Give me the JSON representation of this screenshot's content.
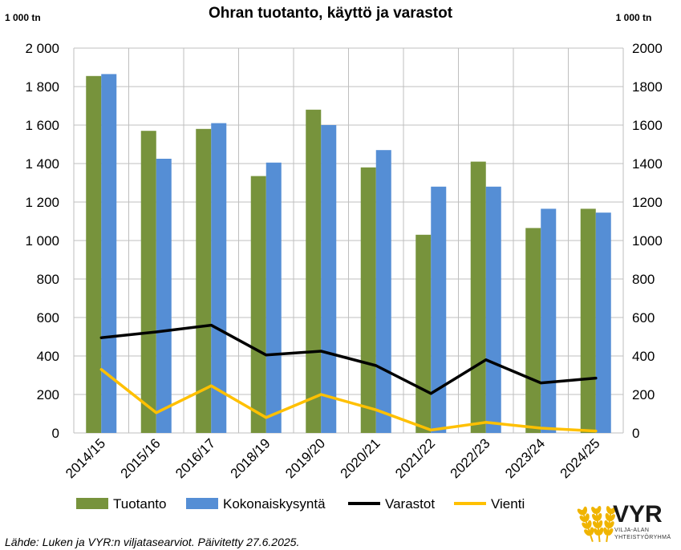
{
  "colors": {
    "tuotanto": "#77933c",
    "kokonaiskysynta": "#558ed5",
    "varastot": "#000000",
    "vienti": "#ffc000",
    "grid": "#bfbfbf",
    "logo_wheat": "#f0b400"
  },
  "chart_data": {
    "type": "bar",
    "title": "Ohran tuotanto, käyttö ja varastot",
    "y_unit_left": "1 000 tn",
    "y_unit_right": "1 000 tn",
    "ylim": [
      0,
      2000
    ],
    "grid": true,
    "legend_position": "bottom",
    "categories": [
      "2014/15",
      "2015/16",
      "2016/17",
      "2018/19",
      "2019/20",
      "2020/21",
      "2021/22",
      "2022/23",
      "2023/24",
      "2024/25"
    ],
    "y_ticks_left": [
      {
        "value": 0,
        "label": "0"
      },
      {
        "value": 200,
        "label": "200"
      },
      {
        "value": 400,
        "label": "400"
      },
      {
        "value": 600,
        "label": "600"
      },
      {
        "value": 800,
        "label": "800"
      },
      {
        "value": 1000,
        "label": "1 000"
      },
      {
        "value": 1200,
        "label": "1 200"
      },
      {
        "value": 1400,
        "label": "1 400"
      },
      {
        "value": 1600,
        "label": "1 600"
      },
      {
        "value": 1800,
        "label": "1 800"
      },
      {
        "value": 2000,
        "label": "2 000"
      }
    ],
    "y_ticks_right": [
      {
        "value": 0,
        "label": "0"
      },
      {
        "value": 200,
        "label": "200"
      },
      {
        "value": 400,
        "label": "400"
      },
      {
        "value": 600,
        "label": "600"
      },
      {
        "value": 800,
        "label": "800"
      },
      {
        "value": 1000,
        "label": "1000"
      },
      {
        "value": 1200,
        "label": "1200"
      },
      {
        "value": 1400,
        "label": "1400"
      },
      {
        "value": 1600,
        "label": "1600"
      },
      {
        "value": 1800,
        "label": "1800"
      },
      {
        "value": 2000,
        "label": "2000"
      }
    ],
    "series": [
      {
        "name": "Tuotanto",
        "kind": "bar",
        "axis": "left",
        "color_key": "tuotanto",
        "values": [
          1855,
          1570,
          1580,
          1335,
          1680,
          1380,
          1030,
          1410,
          1065,
          1165
        ]
      },
      {
        "name": "Kokonaiskysyntä",
        "kind": "bar",
        "axis": "left",
        "color_key": "kokonaiskysynta",
        "values": [
          1865,
          1425,
          1610,
          1405,
          1600,
          1470,
          1280,
          1280,
          1165,
          1145
        ]
      },
      {
        "name": "Varastot",
        "kind": "line",
        "axis": "right",
        "color_key": "varastot",
        "values": [
          495,
          525,
          560,
          405,
          425,
          350,
          205,
          380,
          260,
          285
        ]
      },
      {
        "name": "Vienti",
        "kind": "line",
        "axis": "right",
        "color_key": "vienti",
        "values": [
          330,
          105,
          245,
          80,
          200,
          120,
          15,
          55,
          25,
          10
        ]
      }
    ]
  },
  "footer": {
    "source": "Lähde: Luken ja VYR:n viljatasearviot. Päivitetty 27.6.2025."
  },
  "logo": {
    "name": "VYR",
    "subtitle_line1": "VILJA-ALAN",
    "subtitle_line2": "YHTEISTYÖRYHMÄ"
  }
}
